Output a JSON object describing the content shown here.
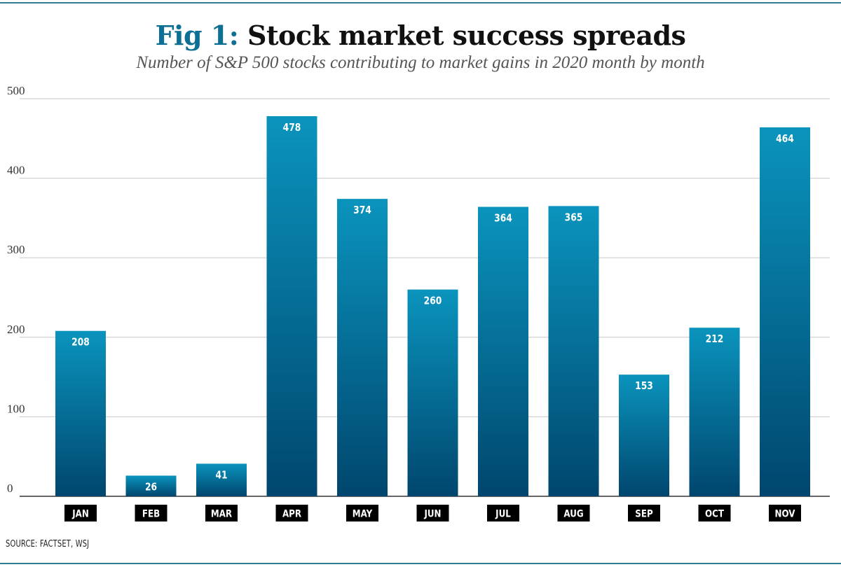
{
  "header": {
    "title_prefix": "Fig 1:",
    "title_main": " Stock market success spreads",
    "subtitle": "Number of S&P 500 stocks contributing to market gains in 2020 month by month"
  },
  "footer": {
    "source": "SOURCE: FACTSET, WSJ"
  },
  "colors": {
    "bar_top": "#0a94bd",
    "bar_bottom": "#00466e",
    "label_bg": "#000000",
    "label_text": "#ffffff",
    "grid": "#c8c8c8",
    "rule": "#2f7d92",
    "accent": "#0d6f93"
  },
  "chart_data": {
    "type": "bar",
    "title": "Fig 1: Stock market success spreads",
    "subtitle": "Number of S&P 500 stocks contributing to market gains in 2020 month by month",
    "xlabel": "",
    "ylabel": "",
    "categories": [
      "JAN",
      "FEB",
      "MAR",
      "APR",
      "MAY",
      "JUN",
      "JUL",
      "AUG",
      "SEP",
      "OCT",
      "NOV"
    ],
    "values": [
      208,
      26,
      41,
      478,
      374,
      260,
      364,
      365,
      153,
      212,
      464
    ],
    "ylim": [
      0,
      500
    ],
    "yticks": [
      0,
      100,
      200,
      300,
      400,
      500
    ],
    "grid": true,
    "data_labels": true
  }
}
